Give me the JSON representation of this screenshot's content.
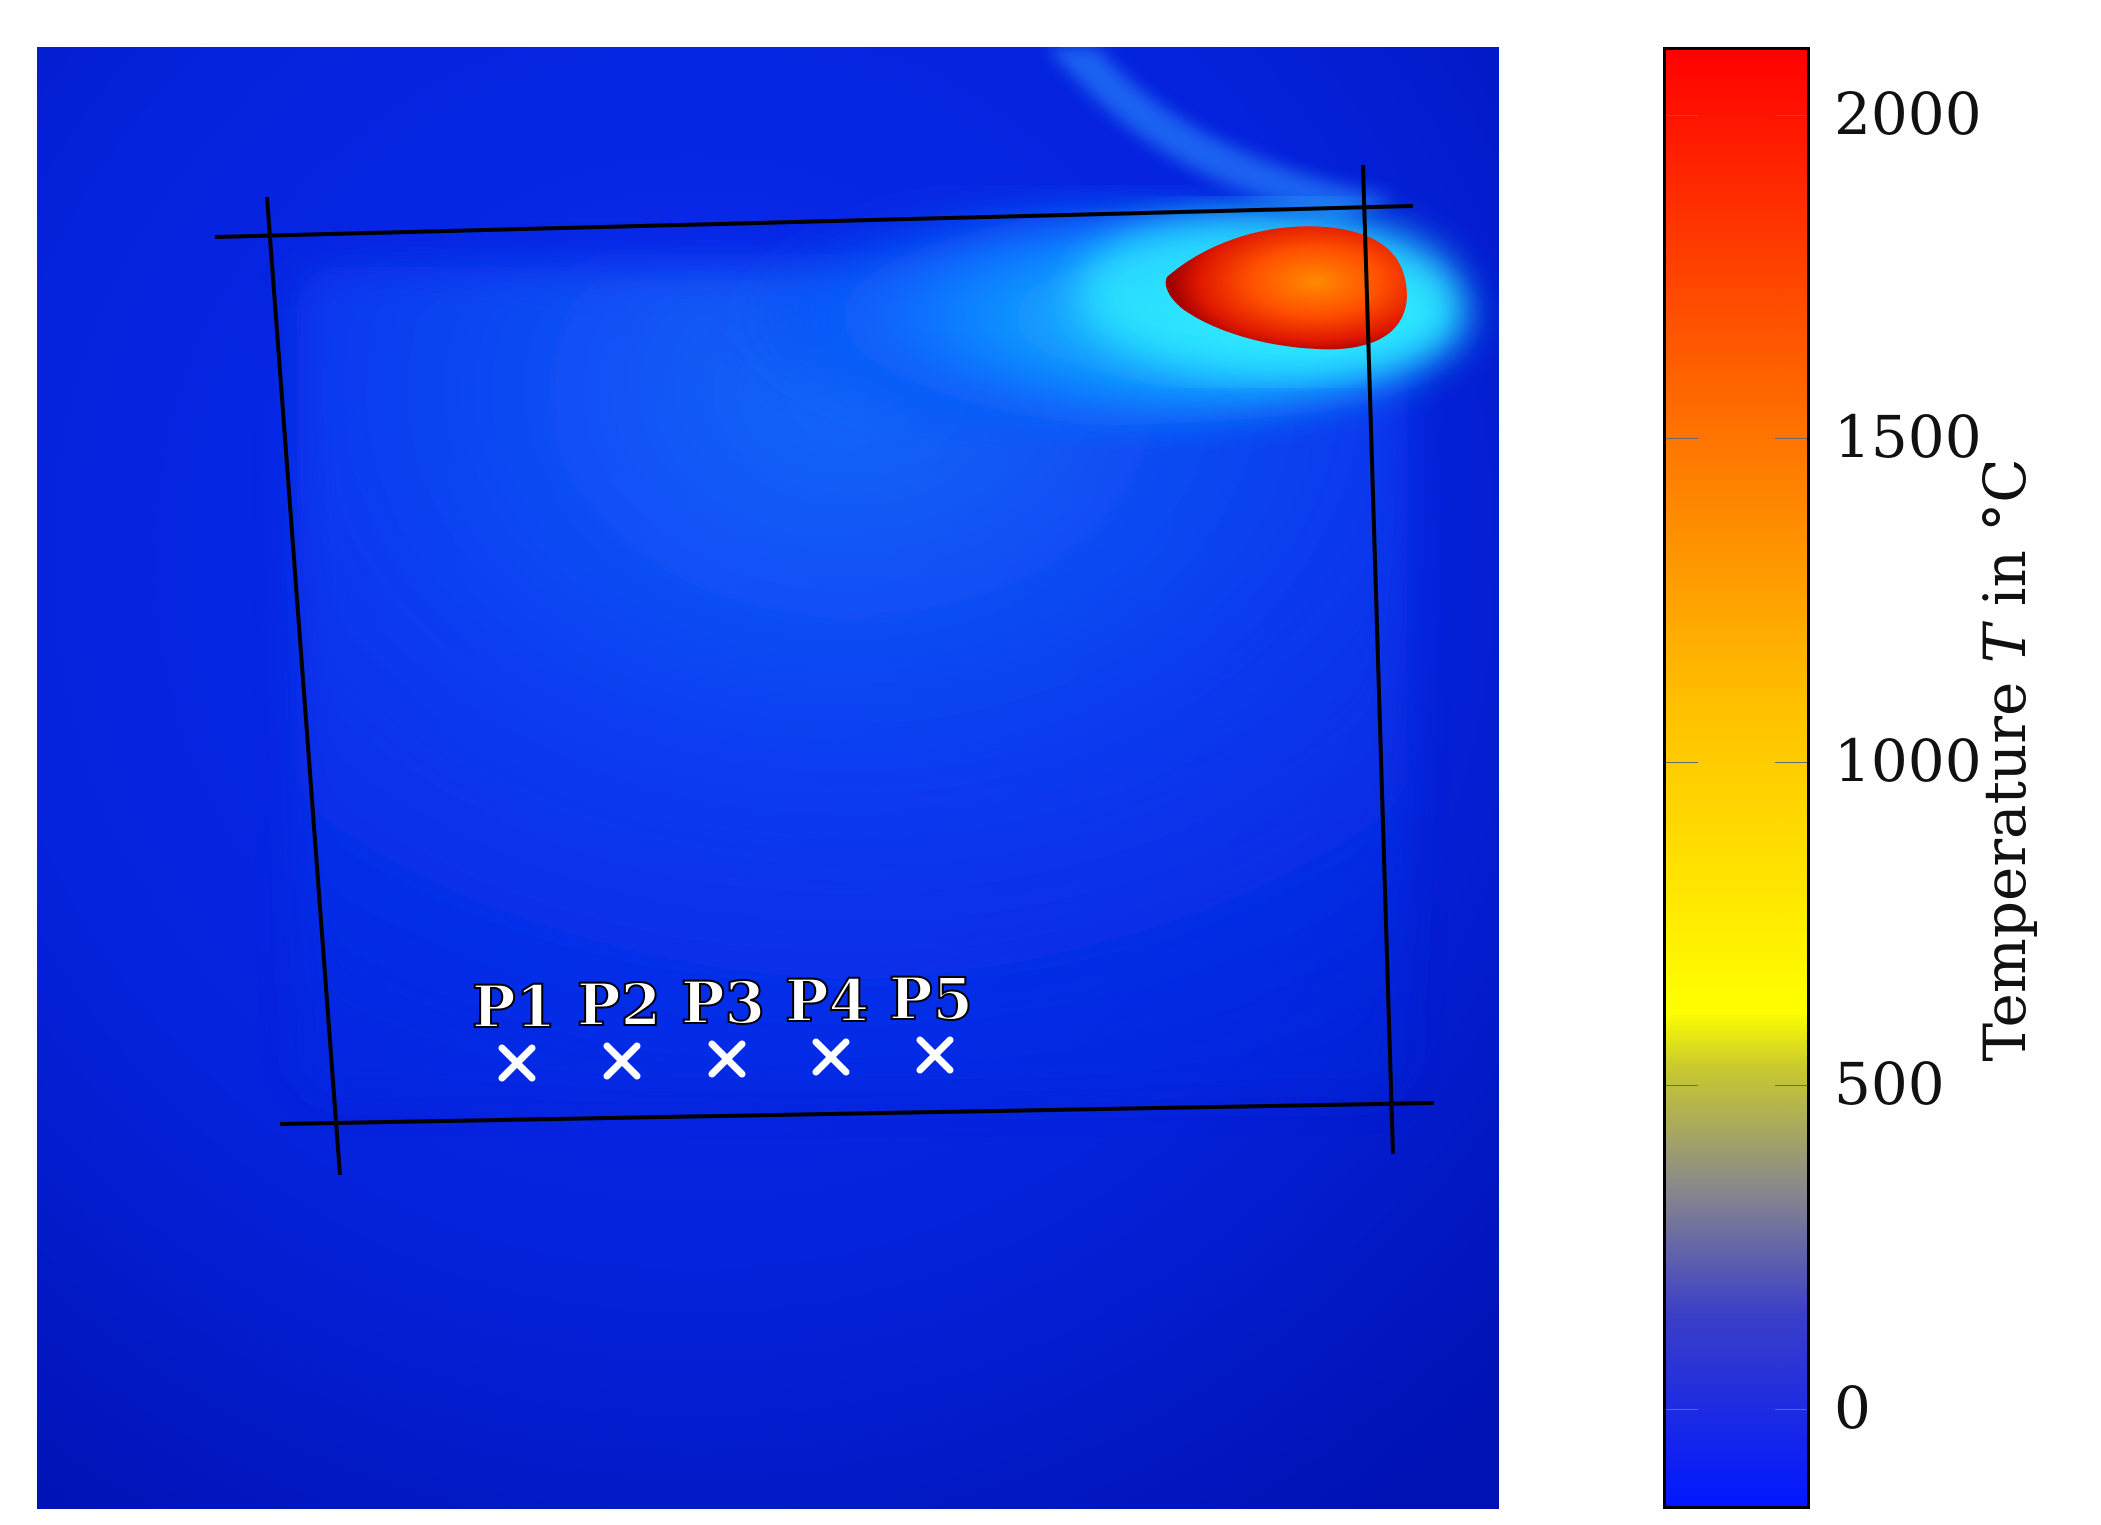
{
  "image": {
    "description_colors": {
      "background_dark": "#0010b8",
      "background_mid": "#0024e6",
      "plume_cyan": "#1ae0ff",
      "hotspot_red": "#e02000"
    },
    "points": [
      {
        "label": "P1",
        "icon": "cross-marker-icon"
      },
      {
        "label": "P2",
        "icon": "cross-marker-icon"
      },
      {
        "label": "P3",
        "icon": "cross-marker-icon"
      },
      {
        "label": "P4",
        "icon": "cross-marker-icon"
      },
      {
        "label": "P5",
        "icon": "cross-marker-icon"
      }
    ]
  },
  "colorbar": {
    "title_prefix": "Temperature ",
    "title_var": "T",
    "title_suffix": " in °C",
    "min": -150,
    "max": 2100,
    "ticks": [
      {
        "value": 0,
        "label": "0"
      },
      {
        "value": 500,
        "label": "500"
      },
      {
        "value": 1000,
        "label": "1000"
      },
      {
        "value": 1500,
        "label": "1500"
      },
      {
        "value": 2000,
        "label": "2000"
      }
    ],
    "gradient": [
      {
        "t": 0.0,
        "color": "#0018ff"
      },
      {
        "t": 0.13,
        "color": "#3a3ec8"
      },
      {
        "t": 0.22,
        "color": "#8a8a8a"
      },
      {
        "t": 0.3,
        "color": "#c8c830"
      },
      {
        "t": 0.34,
        "color": "#ffff00"
      },
      {
        "t": 0.55,
        "color": "#ffc000"
      },
      {
        "t": 0.72,
        "color": "#ff7a00"
      },
      {
        "t": 1.0,
        "color": "#ff0000"
      }
    ]
  }
}
